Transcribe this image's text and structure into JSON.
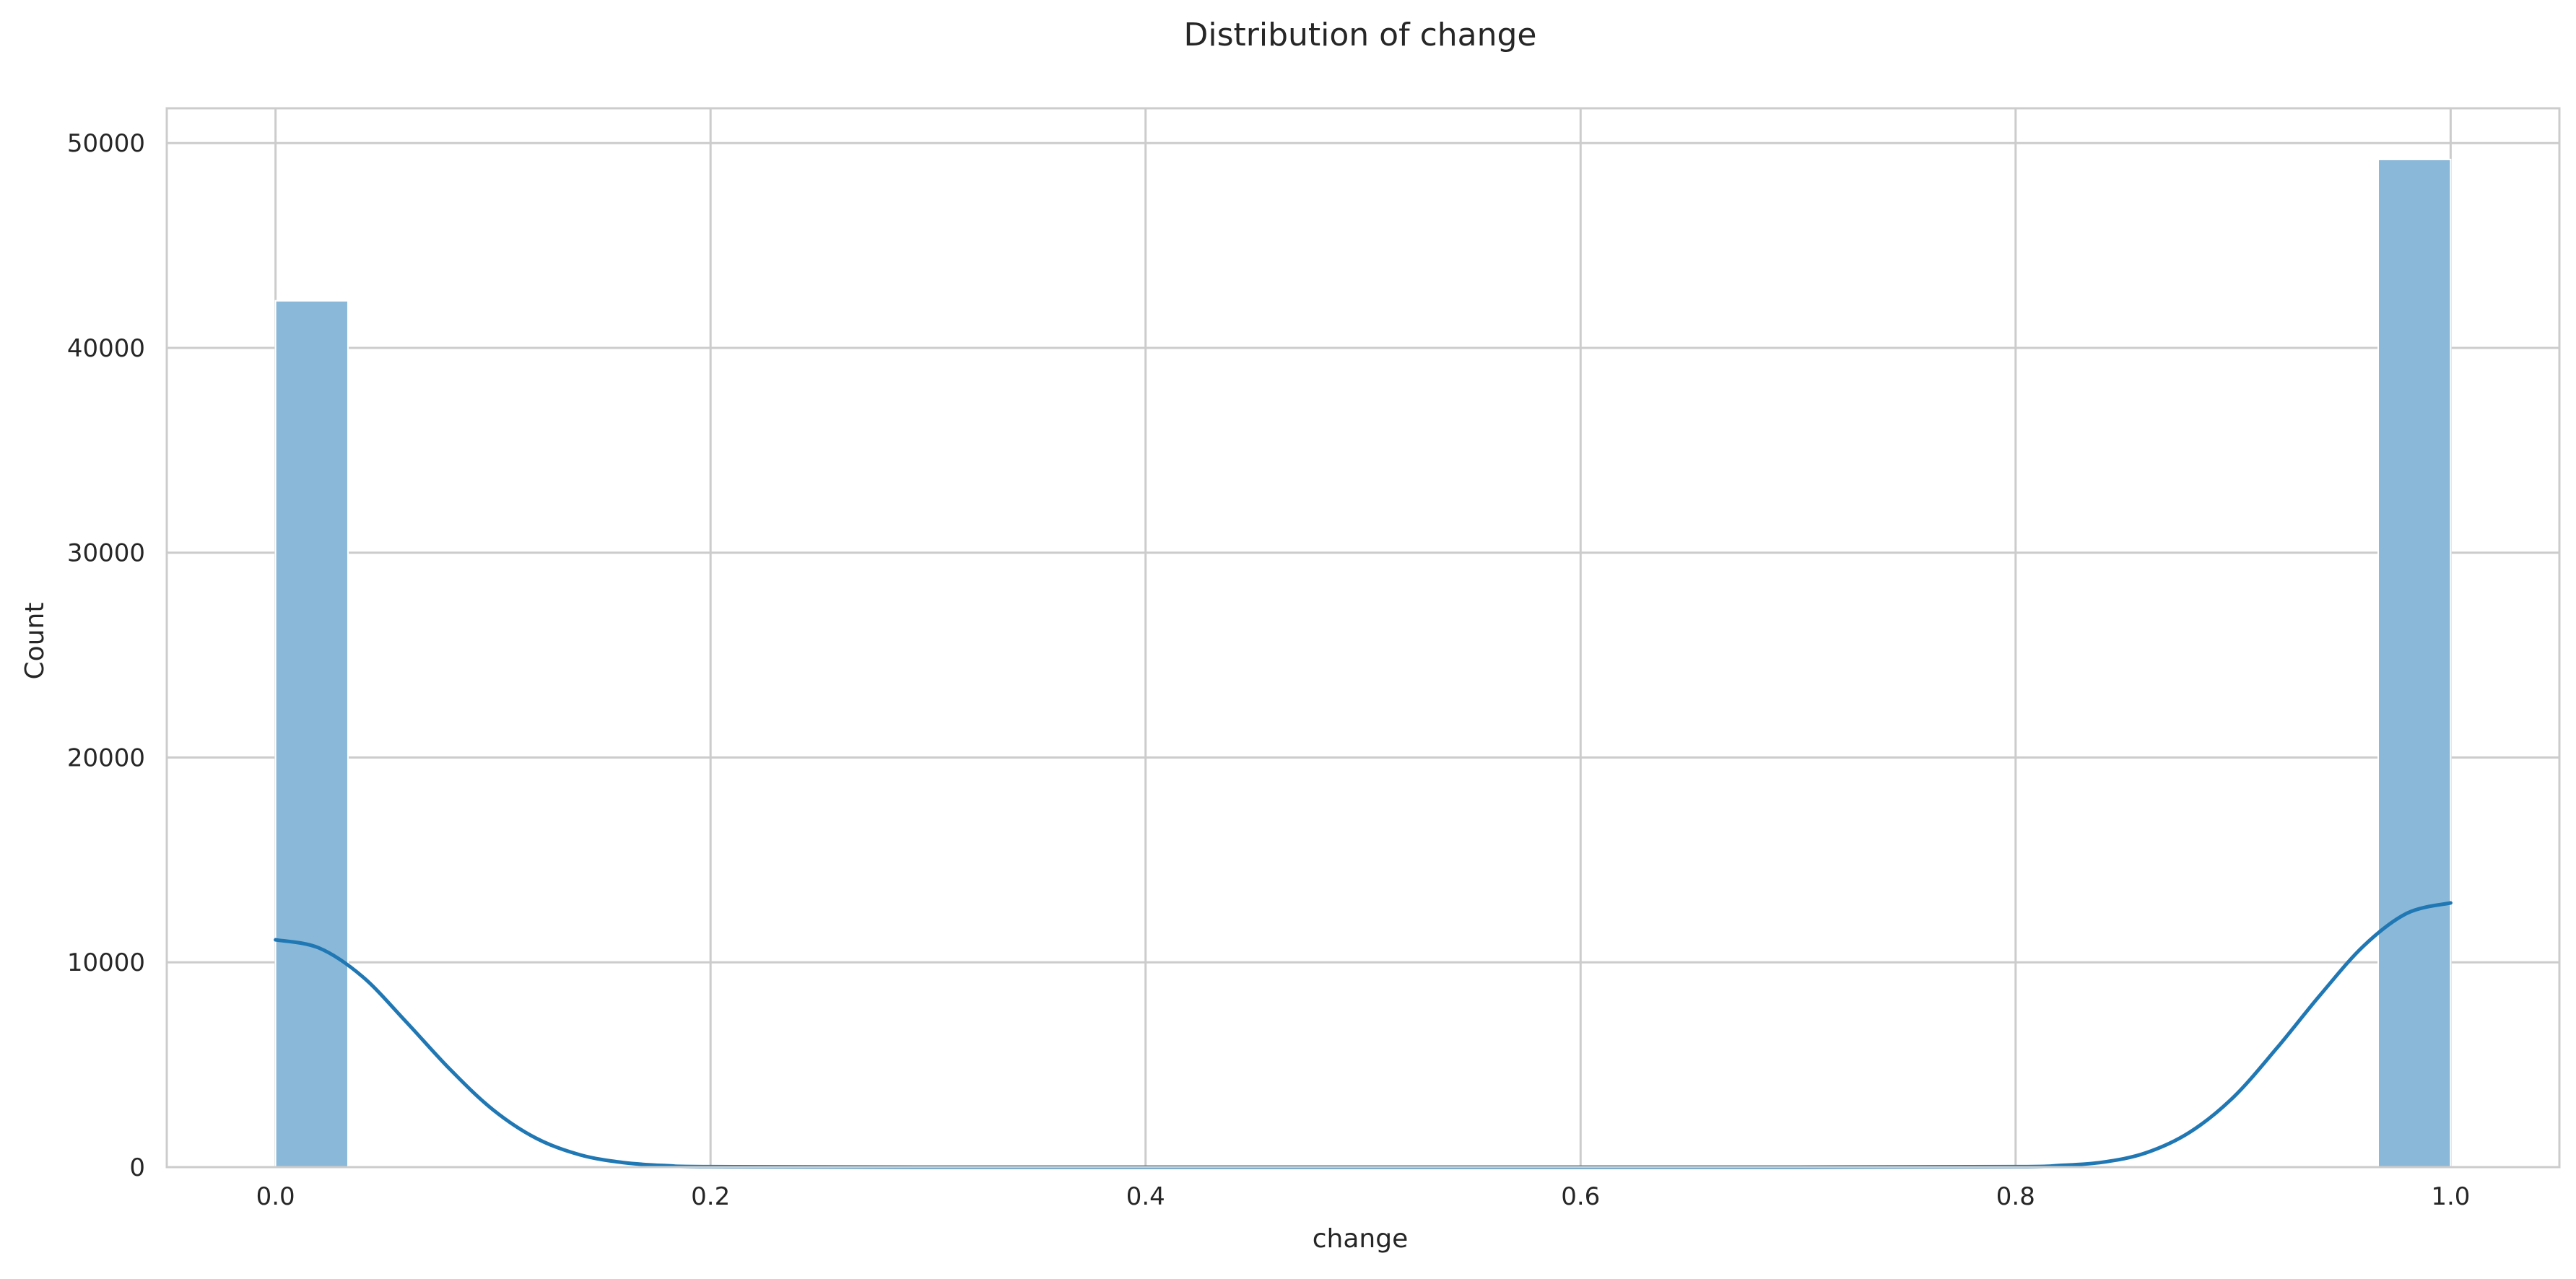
{
  "chart_data": {
    "type": "bar",
    "title": "Distribution of change",
    "xlabel": "change",
    "ylabel": "Count",
    "xlim": [
      -0.05,
      1.05
    ],
    "ylim": [
      0,
      51700
    ],
    "x_ticks": [
      0.0,
      0.2,
      0.4,
      0.6,
      0.8,
      1.0
    ],
    "x_tick_labels": [
      "0.0",
      "0.2",
      "0.4",
      "0.6",
      "0.8",
      "1.0"
    ],
    "y_ticks": [
      0,
      10000,
      20000,
      30000,
      40000,
      50000
    ],
    "y_tick_labels": [
      "0",
      "10000",
      "20000",
      "30000",
      "40000",
      "50000"
    ],
    "grid": true,
    "legend": "none",
    "bins": [
      {
        "x0": 0.0,
        "x1": 0.0333,
        "count": 42300
      },
      {
        "x0": 0.9667,
        "x1": 1.0,
        "count": 49200
      }
    ],
    "kde": {
      "x": [
        0.0,
        0.02,
        0.04,
        0.06,
        0.08,
        0.1,
        0.12,
        0.14,
        0.16,
        0.18,
        0.2,
        0.3,
        0.5,
        0.7,
        0.8,
        0.82,
        0.84,
        0.86,
        0.88,
        0.9,
        0.92,
        0.94,
        0.96,
        0.98,
        1.0
      ],
      "y": [
        11100,
        10700,
        9300,
        7100,
        4800,
        2800,
        1400,
        600,
        220,
        70,
        20,
        0,
        0,
        0,
        20,
        80,
        240,
        700,
        1700,
        3400,
        5800,
        8400,
        10800,
        12400,
        12900
      ]
    },
    "colors": {
      "bar": "#8ab8d8",
      "kde": "#1f77b4",
      "grid": "#cccccc",
      "spine": "#cccccc"
    }
  }
}
